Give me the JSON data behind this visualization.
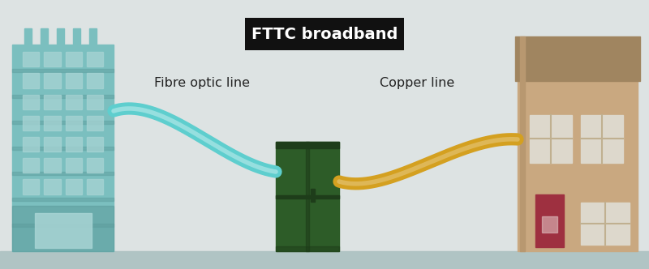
{
  "bg_color": "#dde3e3",
  "title": "FTTC broadband",
  "title_bg": "#111111",
  "title_color": "#ffffff",
  "label_fibre": "Fibre optic line",
  "label_copper": "Copper line",
  "label_color": "#222222",
  "building_color": "#7bbfbf",
  "building_dark": "#5a9999",
  "building_window": "#a8d4d4",
  "building_base": "#6aafaf",
  "rooftop_bar": "#7bbfbf",
  "cabinet_color": "#2d5c28",
  "cabinet_dark": "#1e3d1a",
  "cabinet_mid": "#264f22",
  "house_wall": "#c9a880",
  "house_roof": "#a08560",
  "house_door": "#9e3040",
  "house_window_fill": "#ddd8cc",
  "fibre_color": "#5ecece",
  "copper_color": "#d4a020",
  "ground_color": "#b0c4c4",
  "stripe_color": "#c8d4d4"
}
